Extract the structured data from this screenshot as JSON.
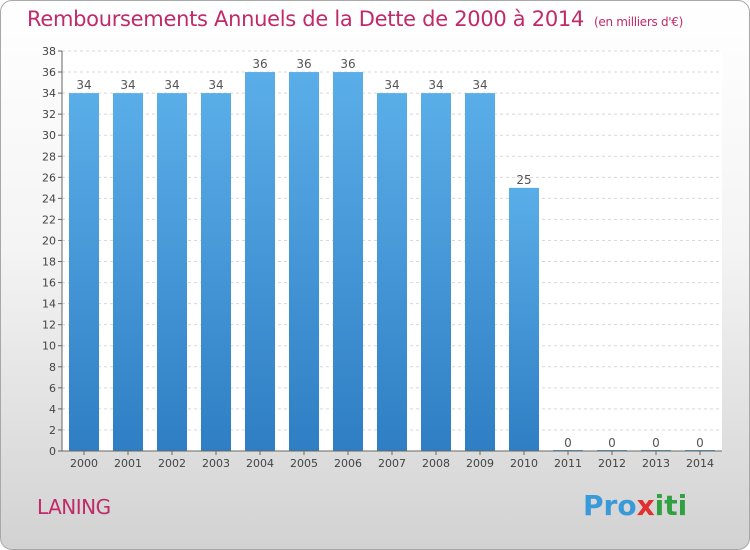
{
  "chart_data": {
    "type": "bar",
    "title": "Remboursements Annuels de la Dette de 2000 à 2014",
    "unit_note": "(en milliers d'€)",
    "categories": [
      "2000",
      "2001",
      "2002",
      "2003",
      "2004",
      "2005",
      "2006",
      "2007",
      "2008",
      "2009",
      "2010",
      "2011",
      "2012",
      "2013",
      "2014"
    ],
    "values": [
      34,
      34,
      34,
      34,
      36,
      36,
      36,
      34,
      34,
      34,
      25,
      0,
      0,
      0,
      0
    ],
    "ylim": [
      0,
      38
    ],
    "yticks": [
      0,
      2,
      4,
      6,
      8,
      10,
      12,
      14,
      16,
      18,
      20,
      22,
      24,
      26,
      28,
      30,
      32,
      34,
      36,
      38
    ],
    "grid": true,
    "bar_color_top": "#5aaee8",
    "bar_color_bottom": "#2f7ec4"
  },
  "commune": "LANING",
  "logo": {
    "p1": "Pro",
    "p2": "x",
    "p3": "iti"
  }
}
